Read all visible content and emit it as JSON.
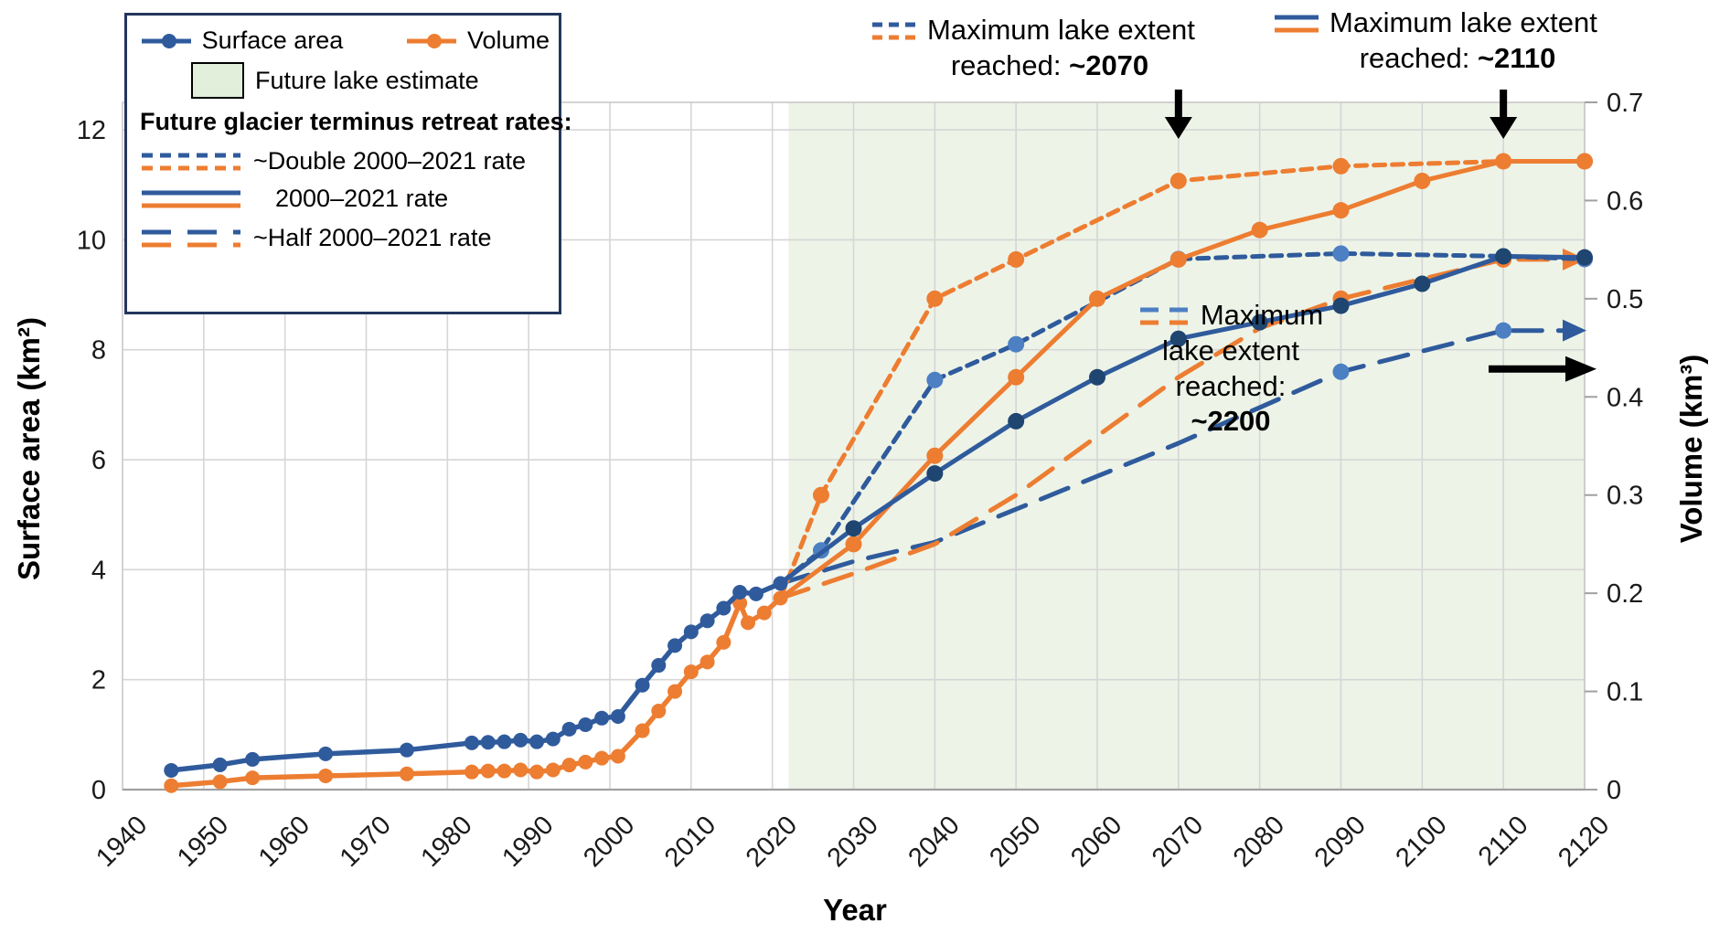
{
  "axes": {
    "x_title": "Year",
    "y_left_title": "Surface area (km²)",
    "y_right_title": "Volume (km³)"
  },
  "legend": {
    "surface_area": "Surface area",
    "volume": "Volume",
    "future_lake": "Future lake estimate",
    "rates_header": "Future glacier terminus retreat rates:",
    "double_rate": "~Double 2000–2021 rate",
    "base_rate": "2000–2021 rate",
    "half_rate": "~Half 2000–2021 rate"
  },
  "annotations": {
    "max_2070": {
      "line1": "Maximum lake extent",
      "line2_prefix": "reached: ",
      "value": "~2070",
      "arrow_year": 2070
    },
    "max_2110": {
      "line1": "Maximum lake extent",
      "line2_prefix": "reached: ",
      "value": "~2110",
      "arrow_year": 2110
    },
    "max_2200": {
      "line1": "Maximum",
      "line2": "lake extent",
      "line3": "reached:",
      "value": "~2200"
    }
  },
  "colors": {
    "blue": "#2f5b9c",
    "blue_light": "#4d7fc3",
    "blue_navy": "#1f4571",
    "orange": "#ed7d31",
    "future_region": "#edf3e7",
    "legend_green": "#e2efda",
    "grid": "#d6d6d6",
    "axis_line": "#a0a0a0",
    "border": "#c8c8c8"
  },
  "chart_data": {
    "type": "line",
    "xlabel": "Year",
    "ylabel_left": "Surface area (km²)",
    "ylabel_right": "Volume (km³)",
    "x_range": [
      1940,
      2120
    ],
    "x_ticks": [
      1940,
      1950,
      1960,
      1970,
      1980,
      1990,
      2000,
      2010,
      2020,
      2030,
      2040,
      2050,
      2060,
      2070,
      2080,
      2090,
      2100,
      2110,
      2120
    ],
    "y_left": {
      "max": 12.5,
      "ticks": [
        0,
        2,
        4,
        6,
        8,
        10,
        12
      ]
    },
    "y_right": {
      "max": 0.7,
      "ticks": [
        {
          "v": 0,
          "label": "0"
        },
        {
          "v": 0.1,
          "label": "0.1"
        },
        {
          "v": 0.2,
          "label": "0.2"
        },
        {
          "v": 0.3,
          "label": "0.3"
        },
        {
          "v": 0.4,
          "label": "0.4"
        },
        {
          "v": 0.5,
          "label": "0.5"
        },
        {
          "v": 0.6,
          "label": "0.6"
        },
        {
          "v": 0.7,
          "label": "0.7"
        }
      ]
    },
    "future_region": {
      "x_start": 2022,
      "x_end": 2120
    },
    "series": [
      {
        "id": "surface-area-half-rate",
        "name": "Surface area — ~Half 2000–2021 rate",
        "axis": "left",
        "color": "#2f5b9c",
        "marker_color": "#4d7fc3",
        "style": "dashed",
        "width": 5,
        "marker_r": 9,
        "arrow_end": true,
        "marker_years": [
          2090,
          2110
        ],
        "points": [
          [
            2021,
            3.75
          ],
          [
            2030,
            4.15
          ],
          [
            2040,
            4.5
          ],
          [
            2050,
            5.1
          ],
          [
            2060,
            5.7
          ],
          [
            2070,
            6.3
          ],
          [
            2080,
            6.95
          ],
          [
            2090,
            7.6
          ],
          [
            2110,
            8.35
          ],
          [
            2120,
            8.35
          ]
        ]
      },
      {
        "id": "volume-half-rate",
        "name": "Volume — ~Half 2000–2021 rate",
        "axis": "right",
        "color": "#ed7d31",
        "marker_color": "#ed7d31",
        "style": "dashed",
        "width": 5,
        "marker_r": 9,
        "arrow_end": true,
        "marker_years": [
          2090,
          2110
        ],
        "points": [
          [
            2021,
            0.195
          ],
          [
            2030,
            0.22
          ],
          [
            2040,
            0.25
          ],
          [
            2050,
            0.3
          ],
          [
            2060,
            0.36
          ],
          [
            2070,
            0.42
          ],
          [
            2080,
            0.47
          ],
          [
            2090,
            0.5
          ],
          [
            2110,
            0.54
          ],
          [
            2120,
            0.54
          ]
        ]
      },
      {
        "id": "volume-double-rate",
        "name": "Volume — ~Double 2000–2021 rate",
        "axis": "right",
        "color": "#ed7d31",
        "marker_color": "#ed7d31",
        "style": "dotted",
        "width": 5,
        "marker_r": 9,
        "arrow_end": false,
        "marker_years": [
          2026,
          2040,
          2050,
          2070,
          2090,
          2120
        ],
        "points": [
          [
            2021,
            0.195
          ],
          [
            2026,
            0.3
          ],
          [
            2040,
            0.5
          ],
          [
            2050,
            0.54
          ],
          [
            2070,
            0.62
          ],
          [
            2090,
            0.635
          ],
          [
            2110,
            0.64
          ],
          [
            2120,
            0.64
          ]
        ]
      },
      {
        "id": "surface-area-double-rate",
        "name": "Surface area — ~Double 2000–2021 rate",
        "axis": "left",
        "color": "#2f5b9c",
        "marker_color": "#4d7fc3",
        "style": "dotted",
        "width": 5,
        "marker_r": 9,
        "arrow_end": false,
        "marker_years": [
          2026,
          2040,
          2050,
          2070,
          2090,
          2120
        ],
        "points": [
          [
            2021,
            3.75
          ],
          [
            2026,
            4.35
          ],
          [
            2040,
            7.45
          ],
          [
            2050,
            8.1
          ],
          [
            2070,
            9.65
          ],
          [
            2090,
            9.75
          ],
          [
            2110,
            9.7
          ],
          [
            2120,
            9.65
          ]
        ]
      },
      {
        "id": "volume-2000-2021-rate",
        "name": "Volume — 2000–2021 rate",
        "axis": "right",
        "color": "#ed7d31",
        "marker_color": "#ed7d31",
        "style": "solid",
        "width": 5,
        "marker_r": 9,
        "arrow_end": false,
        "marker_years": [
          2030,
          2040,
          2050,
          2060,
          2070,
          2080,
          2090,
          2100,
          2110,
          2120
        ],
        "points": [
          [
            2021,
            0.195
          ],
          [
            2030,
            0.25
          ],
          [
            2040,
            0.34
          ],
          [
            2050,
            0.42
          ],
          [
            2060,
            0.5
          ],
          [
            2070,
            0.54
          ],
          [
            2080,
            0.57
          ],
          [
            2090,
            0.59
          ],
          [
            2100,
            0.62
          ],
          [
            2110,
            0.64
          ],
          [
            2120,
            0.64
          ]
        ]
      },
      {
        "id": "surface-area-2000-2021-rate",
        "name": "Surface area — 2000–2021 rate",
        "axis": "left",
        "color": "#2f5b9c",
        "marker_color": "#1f4571",
        "style": "solid",
        "width": 5,
        "marker_r": 9,
        "arrow_end": false,
        "marker_years": [
          2030,
          2040,
          2050,
          2060,
          2070,
          2080,
          2090,
          2100,
          2110,
          2120
        ],
        "points": [
          [
            2021,
            3.75
          ],
          [
            2030,
            4.75
          ],
          [
            2040,
            5.75
          ],
          [
            2050,
            6.7
          ],
          [
            2060,
            7.5
          ],
          [
            2070,
            8.2
          ],
          [
            2080,
            8.5
          ],
          [
            2090,
            8.8
          ],
          [
            2100,
            9.2
          ],
          [
            2110,
            9.7
          ],
          [
            2120,
            9.68
          ]
        ]
      },
      {
        "id": "volume-observed",
        "name": "Volume (observed)",
        "axis": "right",
        "color": "#ed7d31",
        "marker_color": "#ed7d31",
        "style": "solid",
        "width": 5.5,
        "marker_r": 8,
        "arrow_end": false,
        "marker_years": "all",
        "points": [
          [
            1946,
            0.004
          ],
          [
            1952,
            0.008
          ],
          [
            1956,
            0.012
          ],
          [
            1965,
            0.014
          ],
          [
            1975,
            0.016
          ],
          [
            1983,
            0.018
          ],
          [
            1985,
            0.019
          ],
          [
            1987,
            0.019
          ],
          [
            1989,
            0.02
          ],
          [
            1991,
            0.018
          ],
          [
            1993,
            0.02
          ],
          [
            1995,
            0.025
          ],
          [
            1997,
            0.028
          ],
          [
            1999,
            0.032
          ],
          [
            2001,
            0.034
          ],
          [
            2004,
            0.06
          ],
          [
            2006,
            0.08
          ],
          [
            2008,
            0.1
          ],
          [
            2010,
            0.12
          ],
          [
            2012,
            0.13
          ],
          [
            2014,
            0.15
          ],
          [
            2016,
            0.19
          ],
          [
            2017,
            0.17
          ],
          [
            2019,
            0.18
          ],
          [
            2021,
            0.195
          ]
        ]
      },
      {
        "id": "surface-area-observed",
        "name": "Surface area (observed)",
        "axis": "left",
        "color": "#2f5b9c",
        "marker_color": "#2f5b9c",
        "style": "solid",
        "width": 5.5,
        "marker_r": 8,
        "arrow_end": false,
        "marker_years": "all",
        "points": [
          [
            1946,
            0.35
          ],
          [
            1952,
            0.45
          ],
          [
            1956,
            0.55
          ],
          [
            1965,
            0.65
          ],
          [
            1975,
            0.72
          ],
          [
            1983,
            0.85
          ],
          [
            1985,
            0.86
          ],
          [
            1987,
            0.87
          ],
          [
            1989,
            0.9
          ],
          [
            1991,
            0.87
          ],
          [
            1993,
            0.92
          ],
          [
            1995,
            1.1
          ],
          [
            1997,
            1.18
          ],
          [
            1999,
            1.3
          ],
          [
            2001,
            1.33
          ],
          [
            2004,
            1.9
          ],
          [
            2006,
            2.26
          ],
          [
            2008,
            2.62
          ],
          [
            2010,
            2.87
          ],
          [
            2012,
            3.07
          ],
          [
            2014,
            3.3
          ],
          [
            2016,
            3.59
          ],
          [
            2018,
            3.56
          ],
          [
            2021,
            3.75
          ]
        ]
      }
    ],
    "black_arrows": [
      {
        "type": "down",
        "year": 2070
      },
      {
        "type": "down",
        "year": 2110
      },
      {
        "type": "right",
        "y_left_value": 7.65
      }
    ]
  }
}
